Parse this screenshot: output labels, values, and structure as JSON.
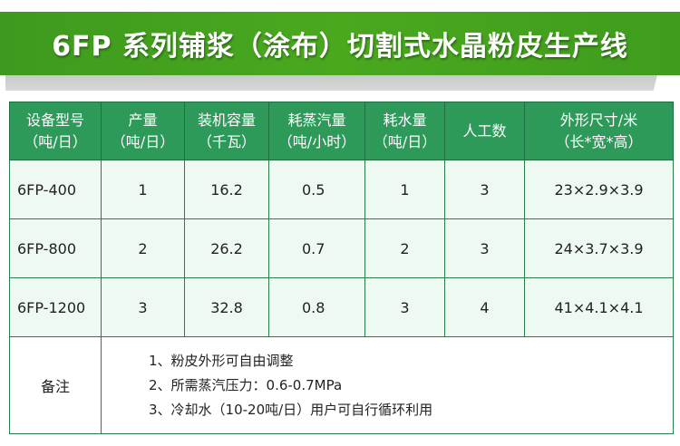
{
  "title": "6FP 系列铺浆（涂布）切割式水晶粉皮生产线",
  "colors": {
    "banner": "#46a31f",
    "header": "#2e9a5a",
    "row": "#eefaf1",
    "border": "#2b7d4f"
  },
  "table": {
    "headers": [
      [
        "设备型号",
        "（吨/日）"
      ],
      [
        "产量",
        "（吨/日）"
      ],
      [
        "装机容量",
        "（千瓦）"
      ],
      [
        "耗蒸汽量",
        "（吨/小时）"
      ],
      [
        "耗水量",
        "（吨/日）"
      ],
      [
        "人工数",
        ""
      ],
      [
        "外形尺寸/米",
        "（长*宽*高）"
      ]
    ],
    "rows": [
      [
        "6FP-400",
        "1",
        "16.2",
        "0.5",
        "1",
        "3",
        "23×2.9×3.9"
      ],
      [
        "6FP-800",
        "2",
        "26.2",
        "0.7",
        "2",
        "3",
        "24×3.7×3.9"
      ],
      [
        "6FP-1200",
        "3",
        "32.8",
        "0.8",
        "3",
        "4",
        "41×4.1×4.1"
      ]
    ],
    "notes_label": "备注",
    "notes": [
      "1、粉皮外形可自由调整",
      "2、所需蒸汽压力：0.6-0.7MPa",
      "3、冷却水（10-20吨/日）用户可自行循环利用"
    ]
  }
}
